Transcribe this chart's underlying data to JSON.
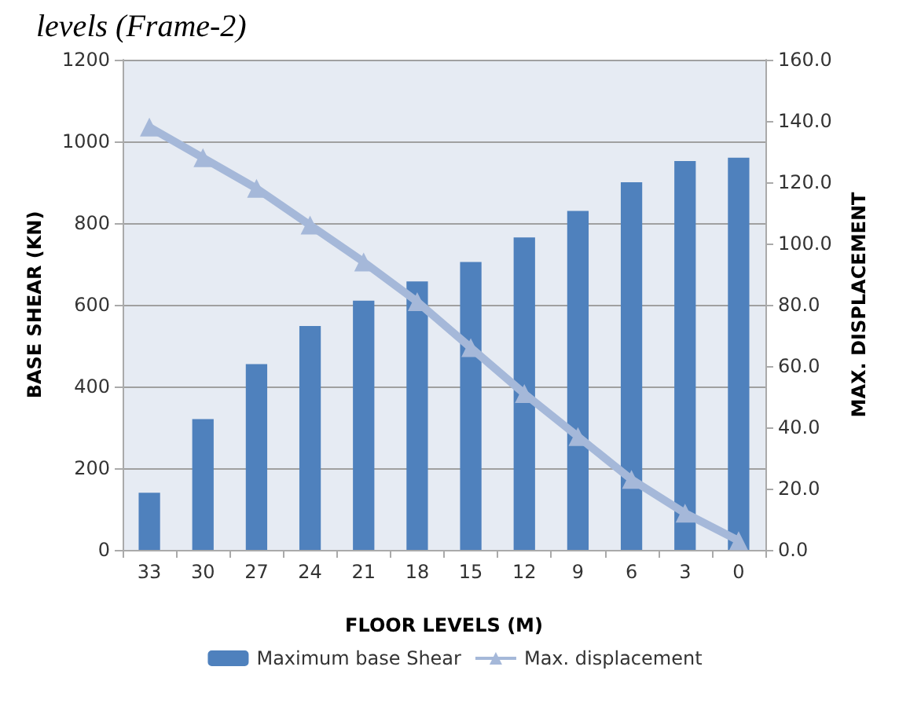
{
  "chart_data": {
    "type": "bar",
    "title": "levels (Frame-2)",
    "xlabel": "FLOOR LEVELS (M)",
    "ylabel": "BASE SHEAR (KN)",
    "y2label": "MAX. DISPLACEMENT",
    "categories": [
      "33",
      "30",
      "27",
      "24",
      "21",
      "18",
      "15",
      "12",
      "9",
      "6",
      "3",
      "0"
    ],
    "series": [
      {
        "name": "Maximum base Shear",
        "color": "#4f81bd",
        "values": [
          140,
          320,
          455,
          548,
          610,
          657,
          705,
          765,
          830,
          900,
          952,
          960
        ]
      },
      {
        "name": "Max. displacement",
        "type": "line",
        "axis": "y2",
        "color": "#a5b8d9",
        "marker": "triangle",
        "values": [
          138,
          128,
          118,
          106,
          94,
          81,
          66,
          51,
          37,
          23,
          12,
          3
        ]
      }
    ],
    "ylim": [
      0,
      1200
    ],
    "yticks": [
      0,
      200,
      400,
      600,
      800,
      1000,
      1200
    ],
    "y2lim": [
      0,
      160
    ],
    "y2ticks": [
      {
        "value": 0,
        "label": "0.0"
      },
      {
        "value": 20,
        "label": "20.0"
      },
      {
        "value": 40,
        "label": "40.0"
      },
      {
        "value": 60,
        "label": "60.0"
      },
      {
        "value": 80,
        "label": "80.0"
      },
      {
        "value": 100,
        "label": "100.0"
      },
      {
        "value": 120,
        "label": "120.0"
      },
      {
        "value": 140,
        "label": "140.0"
      },
      {
        "value": 160,
        "label": "160.0"
      }
    ],
    "grid": "y",
    "legend": "bottom"
  }
}
